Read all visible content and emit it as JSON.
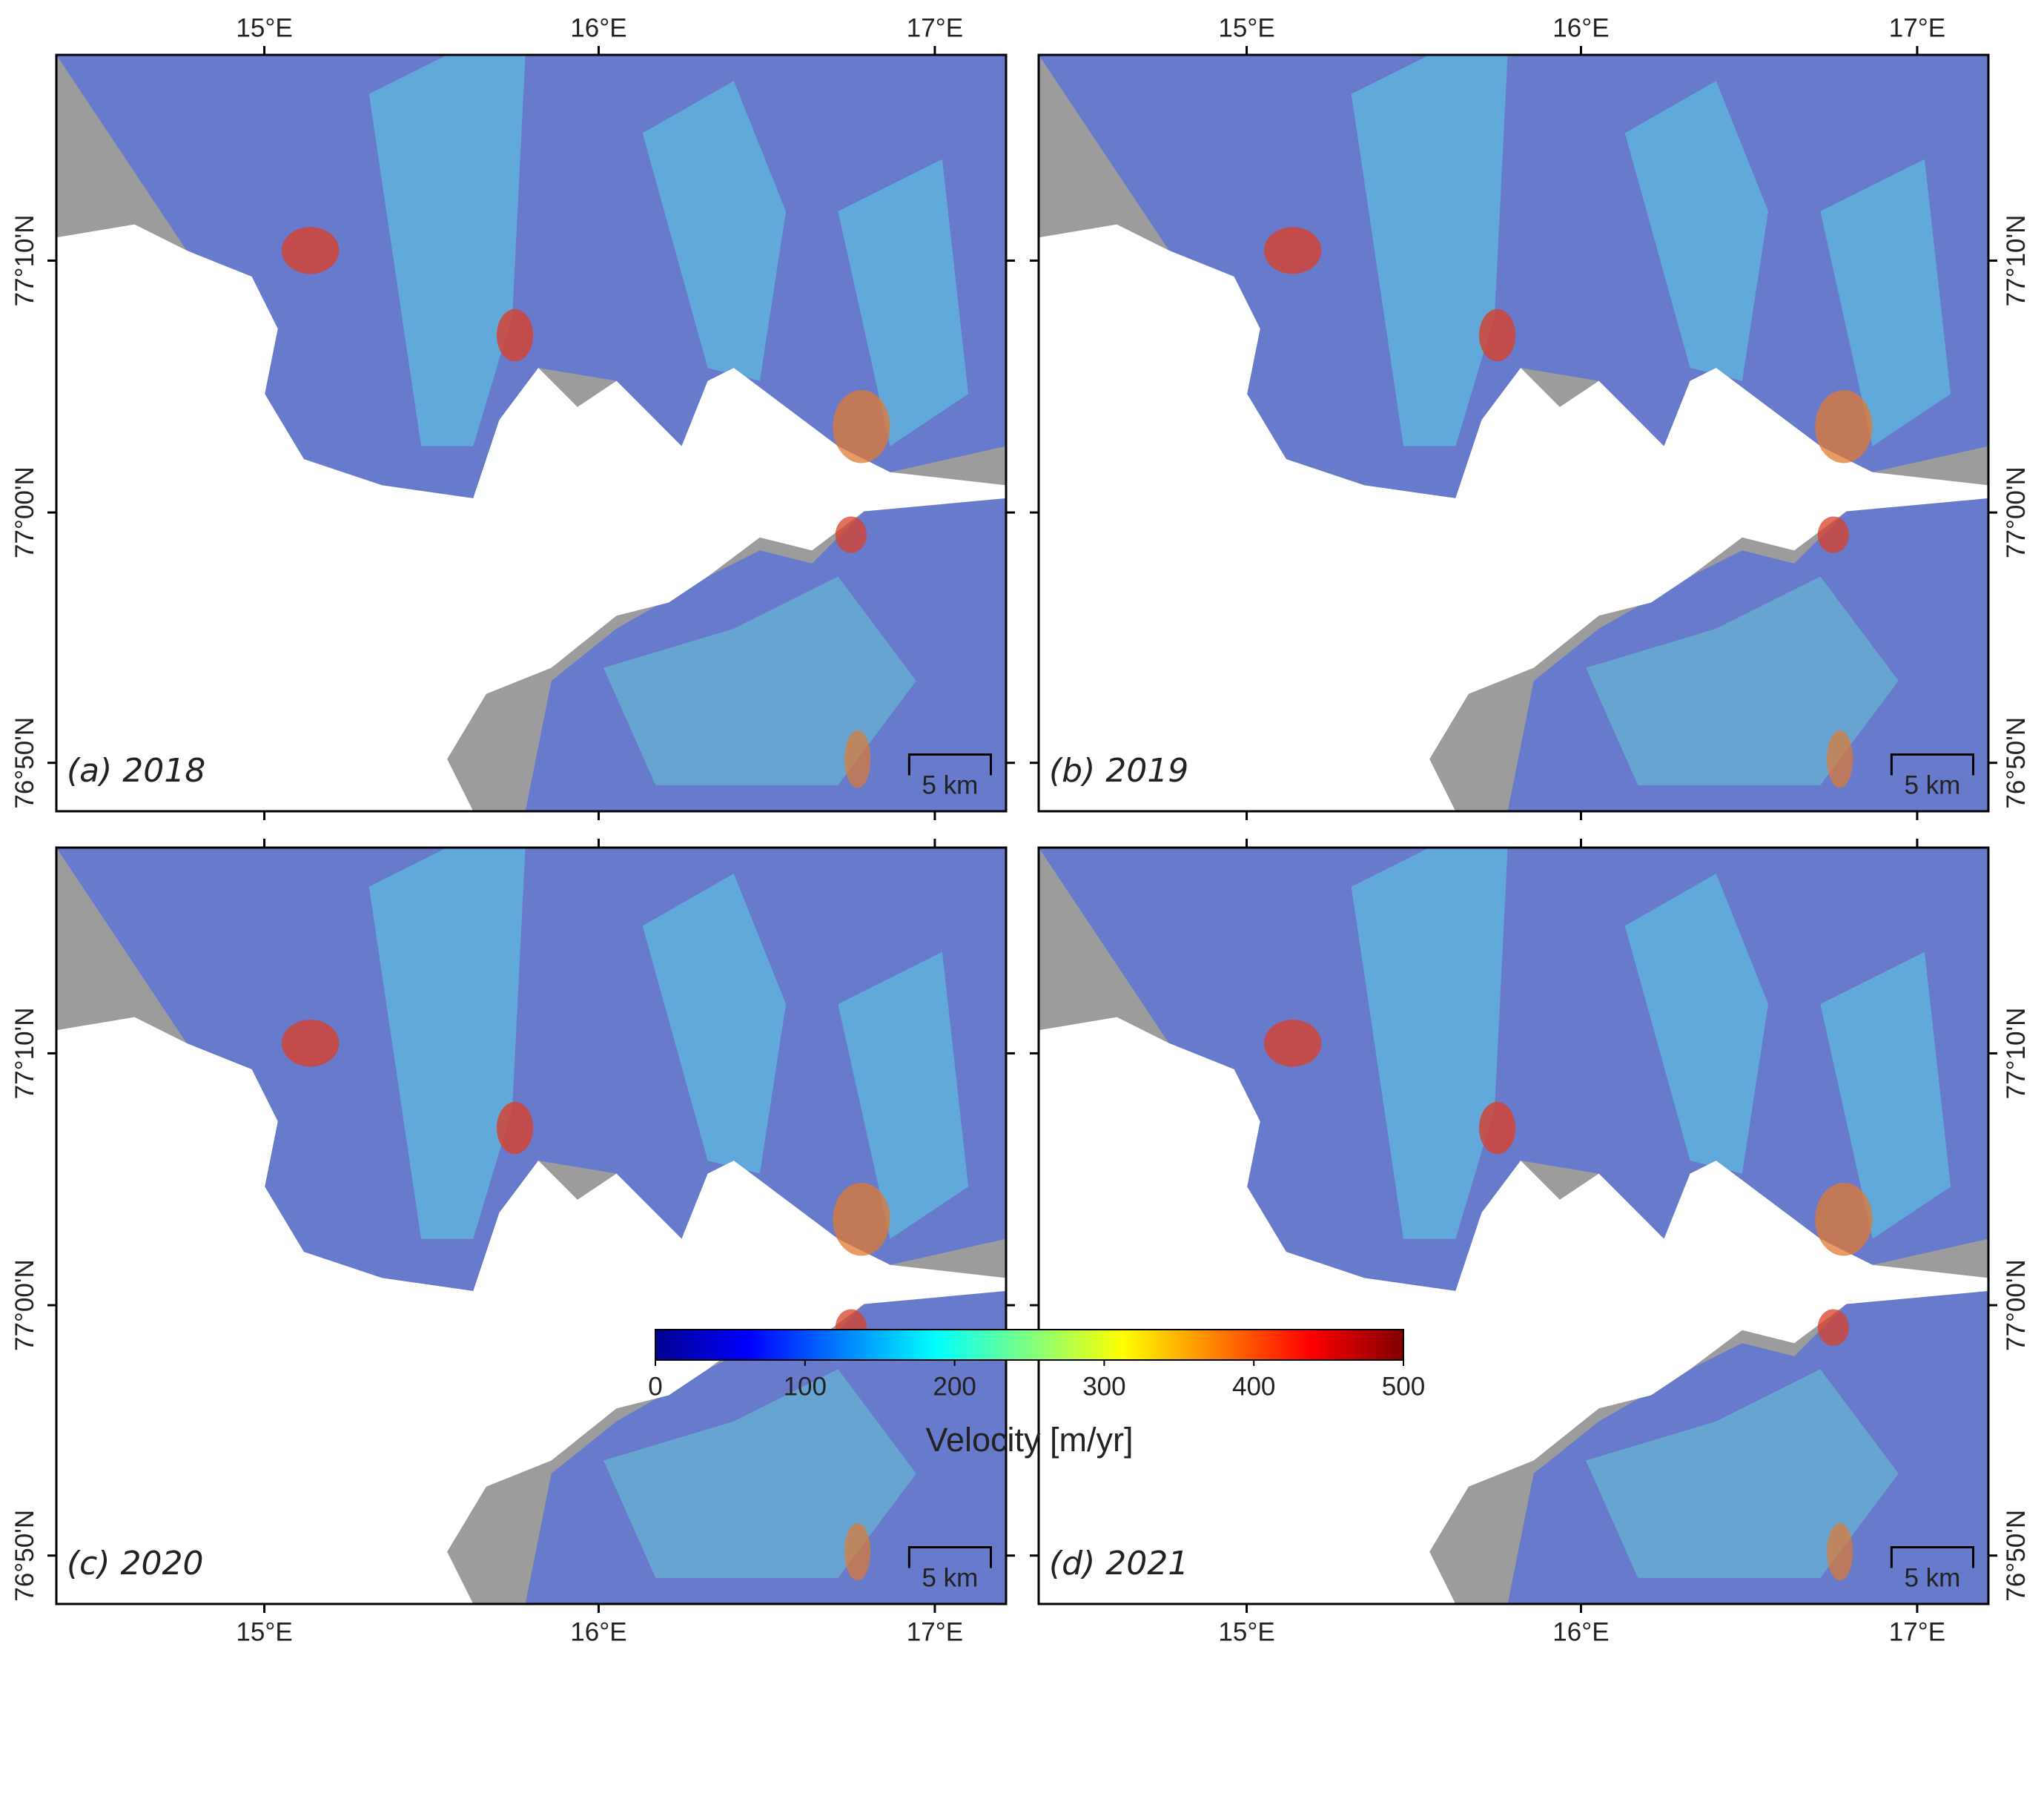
{
  "panels": [
    {
      "label": "(a) 2018"
    },
    {
      "label": "(b) 2019"
    },
    {
      "label": "(c) 2020"
    },
    {
      "label": "(d) 2021"
    }
  ],
  "lon_ticks": [
    "15°E",
    "16°E",
    "17°E"
  ],
  "lat_ticks": [
    "77°10'N",
    "77°00'N",
    "76°50'N"
  ],
  "scale_bar": "5 km",
  "colorbar": {
    "label": "Velocity [m/yr]",
    "lim": [
      0,
      500
    ],
    "ticks": [
      0,
      100,
      200,
      300,
      400,
      500
    ],
    "colors": [
      "#00008f",
      "#0000ff",
      "#0080ff",
      "#00ffff",
      "#80ff80",
      "#ffff00",
      "#ff8000",
      "#ff0000",
      "#800000"
    ]
  }
}
